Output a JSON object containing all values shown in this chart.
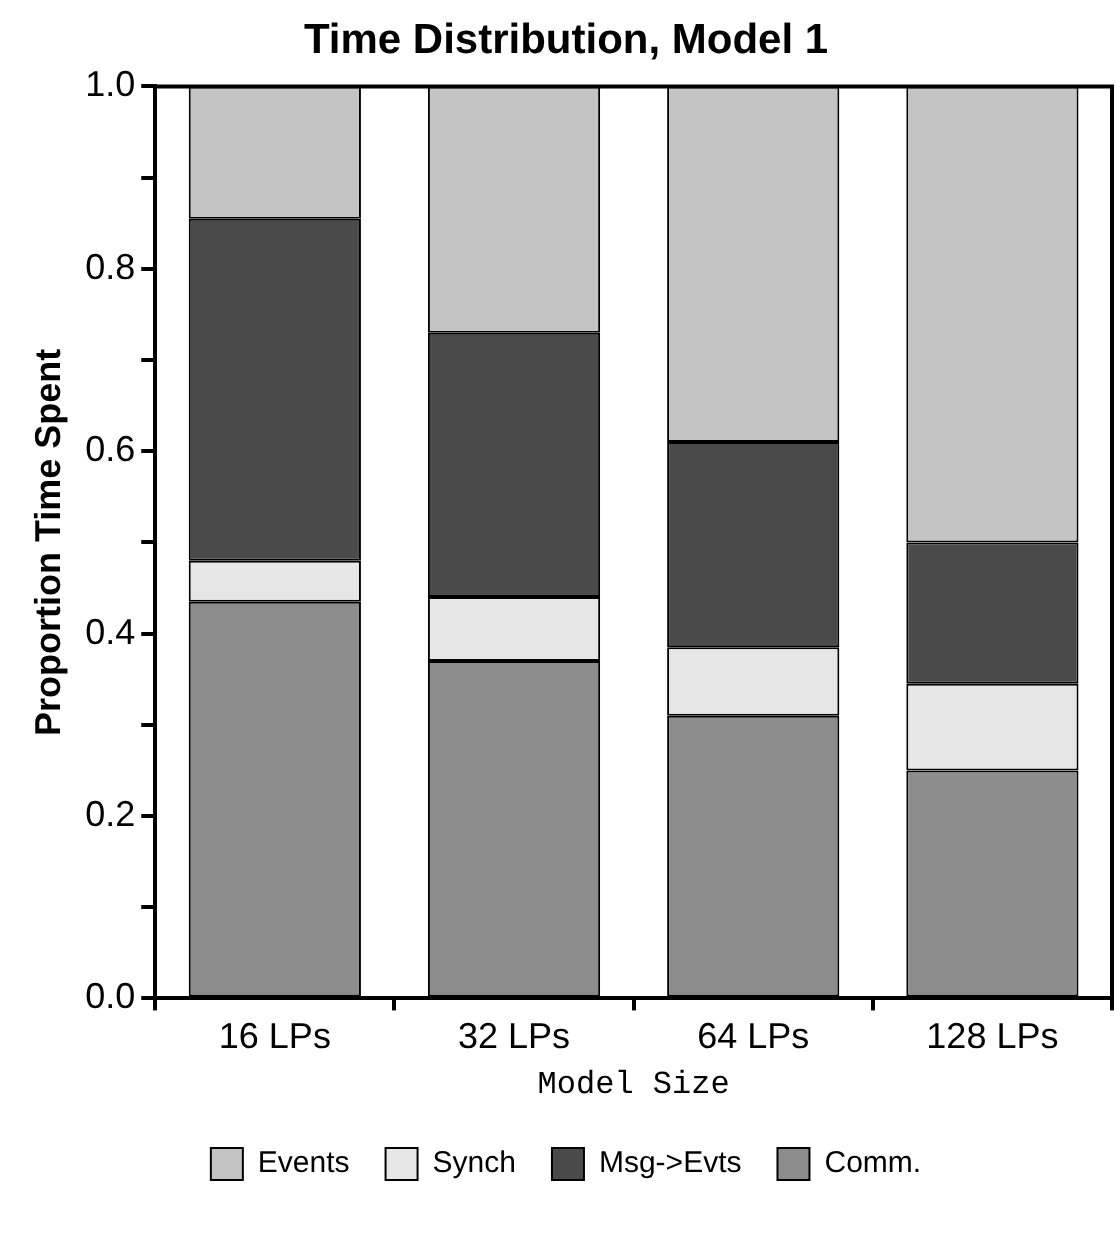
{
  "chart_data": {
    "type": "bar",
    "title": "Time Distribution, Model 1",
    "xlabel": "Model Size",
    "ylabel": "Proportion Time Spent",
    "categories": [
      "16 LPs",
      "32 LPs",
      "64 LPs",
      "128 LPs"
    ],
    "stacked": true,
    "legend": "bottom",
    "grid": false,
    "ylim": [
      0,
      1
    ],
    "yticks": [
      {
        "value": 0,
        "label": "0.0"
      },
      {
        "value": 0.1,
        "label": null
      },
      {
        "value": 0.2,
        "label": "0.2"
      },
      {
        "value": 0.3,
        "label": null
      },
      {
        "value": 0.4,
        "label": "0.4"
      },
      {
        "value": 0.5,
        "label": null
      },
      {
        "value": 0.6,
        "label": "0.6"
      },
      {
        "value": 0.7,
        "label": null
      },
      {
        "value": 0.8,
        "label": "0.8"
      },
      {
        "value": 0.9,
        "label": null
      },
      {
        "value": 1,
        "label": "1.0"
      }
    ],
    "series": [
      {
        "name": "Comm.",
        "color": "#8c8c8c",
        "values": [
          0.435,
          0.37,
          0.31,
          0.25
        ]
      },
      {
        "name": "Synch",
        "color": "#e6e6e6",
        "values": [
          0.045,
          0.07,
          0.075,
          0.095
        ]
      },
      {
        "name": "Msg->Evts",
        "color": "#4a4a4a",
        "values": [
          0.375,
          0.29,
          0.225,
          0.155
        ]
      },
      {
        "name": "Events",
        "color": "#c4c4c4",
        "values": [
          0.145,
          0.27,
          0.39,
          0.5
        ]
      }
    ]
  }
}
